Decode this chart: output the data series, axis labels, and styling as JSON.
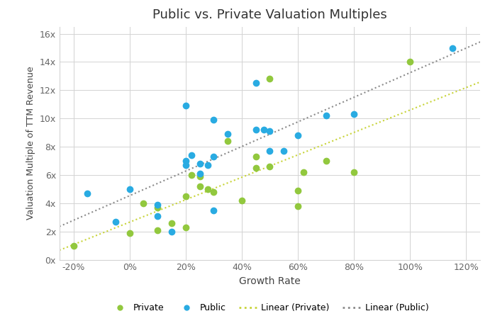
{
  "title": "Public vs. Private Valuation Multiples",
  "xlabel": "Growth Rate",
  "ylabel": "Valuation Multiple of TTM Revenue",
  "private_x": [
    -0.2,
    0.0,
    0.05,
    0.1,
    0.1,
    0.15,
    0.2,
    0.2,
    0.22,
    0.25,
    0.25,
    0.28,
    0.3,
    0.35,
    0.4,
    0.45,
    0.45,
    0.5,
    0.5,
    0.6,
    0.6,
    0.62,
    0.7,
    0.8,
    1.0
  ],
  "private_y": [
    1.0,
    1.9,
    4.0,
    3.7,
    2.1,
    2.6,
    4.5,
    2.3,
    6.0,
    5.9,
    5.2,
    5.0,
    4.8,
    8.4,
    4.2,
    7.3,
    6.5,
    12.8,
    6.6,
    4.9,
    3.8,
    6.2,
    7.0,
    6.2,
    14.0
  ],
  "public_x": [
    -0.15,
    -0.05,
    0.0,
    0.1,
    0.1,
    0.15,
    0.2,
    0.2,
    0.2,
    0.22,
    0.25,
    0.25,
    0.28,
    0.3,
    0.3,
    0.3,
    0.35,
    0.45,
    0.45,
    0.48,
    0.5,
    0.5,
    0.55,
    0.6,
    0.7,
    0.8,
    1.15
  ],
  "public_y": [
    4.7,
    2.7,
    5.0,
    3.9,
    3.1,
    2.0,
    10.9,
    7.0,
    6.7,
    7.4,
    6.8,
    6.1,
    6.7,
    9.9,
    7.3,
    3.5,
    8.9,
    12.5,
    9.2,
    9.2,
    9.1,
    7.7,
    7.7,
    8.8,
    10.2,
    10.3,
    15.0
  ],
  "private_color": "#92c83e",
  "public_color": "#29abe2",
  "private_line_color": "#c8d43a",
  "public_line_color": "#8c8c8c",
  "marker_size": 6,
  "xlim": [
    -0.25,
    1.25
  ],
  "ylim": [
    0,
    16.5
  ],
  "xticks": [
    -0.2,
    0.0,
    0.2,
    0.4,
    0.6,
    0.8,
    1.0,
    1.2
  ],
  "yticks": [
    0,
    2,
    4,
    6,
    8,
    10,
    12,
    14,
    16
  ],
  "ytick_labels": [
    "0x",
    "2x",
    "4x",
    "6x",
    "8x",
    "10x",
    "12x",
    "14x",
    "16x"
  ],
  "xtick_labels": [
    "-20%",
    "0%",
    "20%",
    "40%",
    "60%",
    "80%",
    "100%",
    "120%"
  ],
  "legend_labels": [
    "Private",
    "Public",
    "Linear (Private)",
    "Linear (Public)"
  ],
  "background_color": "#ffffff",
  "grid_color": "#d3d3d3"
}
